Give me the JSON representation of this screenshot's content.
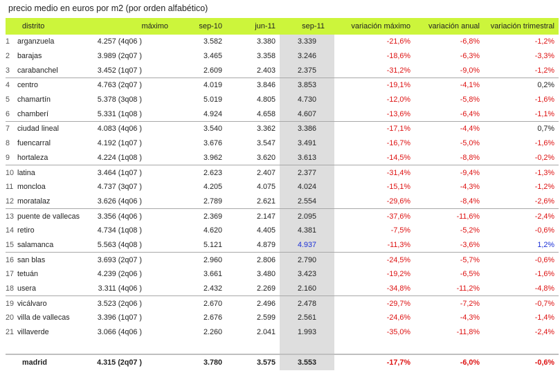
{
  "title": "precio medio en euros por m2 (por orden alfabético)",
  "columns": [
    "distrito",
    "máximo",
    "sep-10",
    "jun-11",
    "sep-11",
    "variación máximo",
    "variación anual",
    "variación trimestral"
  ],
  "rows": [
    {
      "n": "1",
      "distrito": "arganzuela",
      "maximo": "4.257 (4q06 )",
      "sep10": "3.582",
      "jun11": "3.380",
      "sep11": "3.339",
      "vmax": "-21,6%",
      "vanual": "-6,8%",
      "vtrim": "-1,2%"
    },
    {
      "n": "2",
      "distrito": "barajas",
      "maximo": "3.989 (2q07 )",
      "sep10": "3.465",
      "jun11": "3.358",
      "sep11": "3.246",
      "vmax": "-18,6%",
      "vanual": "-6,3%",
      "vtrim": "-3,3%"
    },
    {
      "n": "3",
      "distrito": "carabanchel",
      "maximo": "3.452 (1q07 )",
      "sep10": "2.609",
      "jun11": "2.403",
      "sep11": "2.375",
      "vmax": "-31,2%",
      "vanual": "-9,0%",
      "vtrim": "-1,2%"
    },
    {
      "n": "4",
      "distrito": "centro",
      "maximo": "4.763 (2q07 )",
      "sep10": "4.019",
      "jun11": "3.846",
      "sep11": "3.853",
      "vmax": "-19,1%",
      "vanual": "-4,1%",
      "vtrim": "0,2%"
    },
    {
      "n": "5",
      "distrito": "chamartín",
      "maximo": "5.378 (3q08 )",
      "sep10": "5.019",
      "jun11": "4.805",
      "sep11": "4.730",
      "vmax": "-12,0%",
      "vanual": "-5,8%",
      "vtrim": "-1,6%"
    },
    {
      "n": "6",
      "distrito": "chamberí",
      "maximo": "5.331 (1q08 )",
      "sep10": "4.924",
      "jun11": "4.658",
      "sep11": "4.607",
      "vmax": "-13,6%",
      "vanual": "-6,4%",
      "vtrim": "-1,1%"
    },
    {
      "n": "7",
      "distrito": "ciudad lineal",
      "maximo": "4.083 (4q06 )",
      "sep10": "3.540",
      "jun11": "3.362",
      "sep11": "3.386",
      "vmax": "-17,1%",
      "vanual": "-4,4%",
      "vtrim": "0,7%"
    },
    {
      "n": "8",
      "distrito": "fuencarral",
      "maximo": "4.192 (1q07 )",
      "sep10": "3.676",
      "jun11": "3.547",
      "sep11": "3.491",
      "vmax": "-16,7%",
      "vanual": "-5,0%",
      "vtrim": "-1,6%"
    },
    {
      "n": "9",
      "distrito": "hortaleza",
      "maximo": "4.224 (1q08 )",
      "sep10": "3.962",
      "jun11": "3.620",
      "sep11": "3.613",
      "vmax": "-14,5%",
      "vanual": "-8,8%",
      "vtrim": "-0,2%"
    },
    {
      "n": "10",
      "distrito": "latina",
      "maximo": "3.464 (1q07 )",
      "sep10": "2.623",
      "jun11": "2.407",
      "sep11": "2.377",
      "vmax": "-31,4%",
      "vanual": "-9,4%",
      "vtrim": "-1,3%"
    },
    {
      "n": "11",
      "distrito": "moncloa",
      "maximo": "4.737 (3q07 )",
      "sep10": "4.205",
      "jun11": "4.075",
      "sep11": "4.024",
      "vmax": "-15,1%",
      "vanual": "-4,3%",
      "vtrim": "-1,2%"
    },
    {
      "n": "12",
      "distrito": "moratalaz",
      "maximo": "3.626 (4q06 )",
      "sep10": "2.789",
      "jun11": "2.621",
      "sep11": "2.554",
      "vmax": "-29,6%",
      "vanual": "-8,4%",
      "vtrim": "-2,6%"
    },
    {
      "n": "13",
      "distrito": "puente de vallecas",
      "maximo": "3.356 (4q06 )",
      "sep10": "2.369",
      "jun11": "2.147",
      "sep11": "2.095",
      "vmax": "-37,6%",
      "vanual": "-11,6%",
      "vtrim": "-2,4%"
    },
    {
      "n": "14",
      "distrito": "retiro",
      "maximo": "4.734 (1q08 )",
      "sep10": "4.620",
      "jun11": "4.405",
      "sep11": "4.381",
      "vmax": "-7,5%",
      "vanual": "-5,2%",
      "vtrim": "-0,6%"
    },
    {
      "n": "15",
      "distrito": "salamanca",
      "maximo": "5.563 (4q08 )",
      "sep10": "5.121",
      "jun11": "4.879",
      "sep11": "4.937",
      "vmax": "-11,3%",
      "vanual": "-3,6%",
      "vtrim": "1,2%"
    },
    {
      "n": "16",
      "distrito": "san blas",
      "maximo": "3.693 (2q07 )",
      "sep10": "2.960",
      "jun11": "2.806",
      "sep11": "2.790",
      "vmax": "-24,5%",
      "vanual": "-5,7%",
      "vtrim": "-0,6%"
    },
    {
      "n": "17",
      "distrito": "tetuán",
      "maximo": "4.239 (2q06 )",
      "sep10": "3.661",
      "jun11": "3.480",
      "sep11": "3.423",
      "vmax": "-19,2%",
      "vanual": "-6,5%",
      "vtrim": "-1,6%"
    },
    {
      "n": "18",
      "distrito": "usera",
      "maximo": "3.311 (4q06 )",
      "sep10": "2.432",
      "jun11": "2.269",
      "sep11": "2.160",
      "vmax": "-34,8%",
      "vanual": "-11,2%",
      "vtrim": "-4,8%"
    },
    {
      "n": "19",
      "distrito": "vicálvaro",
      "maximo": "3.523 (2q06 )",
      "sep10": "2.670",
      "jun11": "2.496",
      "sep11": "2.478",
      "vmax": "-29,7%",
      "vanual": "-7,2%",
      "vtrim": "-0,7%"
    },
    {
      "n": "20",
      "distrito": "villa de vallecas",
      "maximo": "3.396 (1q07 )",
      "sep10": "2.676",
      "jun11": "2.599",
      "sep11": "2.561",
      "vmax": "-24,6%",
      "vanual": "-4,3%",
      "vtrim": "-1,4%"
    },
    {
      "n": "21",
      "distrito": "villaverde",
      "maximo": "3.066 (4q06 )",
      "sep10": "2.260",
      "jun11": "2.041",
      "sep11": "1.993",
      "vmax": "-35,0%",
      "vanual": "-11,8%",
      "vtrim": "-2,4%"
    }
  ],
  "total": {
    "distrito": "madrid",
    "maximo": "4.315 (2q07 )",
    "sep10": "3.780",
    "jun11": "3.575",
    "sep11": "3.553",
    "vmax": "-17,7%",
    "vanual": "-6,0%",
    "vtrim": "-0,6%"
  },
  "colors": {
    "header_bg": "#ccf53b",
    "highlight_col": "#dedede",
    "negative": "#dd1111",
    "highlight_value": "#1a2fd6"
  }
}
